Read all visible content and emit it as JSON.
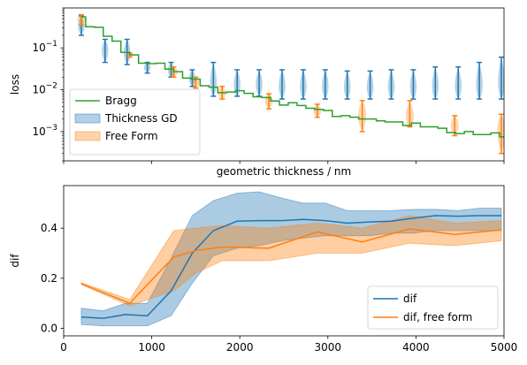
{
  "colors": {
    "blue": "#1f77b4",
    "orange": "#ff7f0e",
    "green": "#2ca02c"
  },
  "chart_data": [
    {
      "type": "line",
      "scale_y": "log",
      "xlim": [
        0,
        5000
      ],
      "ylim": [
        0.0002,
        0.9
      ],
      "ylabel": "loss",
      "xlabel": "geometric thickness / nm",
      "show_x_ticklabels": false,
      "yticks": [
        {
          "value": 0.1,
          "label": "10",
          "exp": "−1"
        },
        {
          "value": 0.01,
          "label": "10",
          "exp": "−2"
        },
        {
          "value": 0.001,
          "label": "10",
          "exp": "−3"
        }
      ],
      "legend": {
        "placement": "lower-left",
        "entries": [
          {
            "label": "Bragg",
            "kind": "line",
            "color": "green"
          },
          {
            "label": "Thickness GD",
            "kind": "patch",
            "color": "blue"
          },
          {
            "label": "Free Form",
            "kind": "patch",
            "color": "orange"
          }
        ]
      },
      "bragg": {
        "x": [
          200,
          300,
          400,
          500,
          600,
          700,
          800,
          900,
          1000,
          1100,
          1200,
          1300,
          1400,
          1500,
          1600,
          1700,
          1800,
          1900,
          2000,
          2100,
          2200,
          2300,
          2400,
          2500,
          2600,
          2700,
          2800,
          2900,
          3000,
          3100,
          3200,
          3300,
          3400,
          3500,
          3600,
          3700,
          3800,
          3900,
          4000,
          4100,
          4200,
          4300,
          4400,
          4500,
          4600,
          4700,
          4800,
          4900,
          5000
        ],
        "y": [
          0.55,
          0.32,
          0.31,
          0.19,
          0.145,
          0.078,
          0.068,
          0.043,
          0.042,
          0.043,
          0.031,
          0.027,
          0.019,
          0.018,
          0.0125,
          0.0115,
          0.0085,
          0.0088,
          0.0095,
          0.0082,
          0.0068,
          0.0065,
          0.0054,
          0.0043,
          0.0049,
          0.0042,
          0.0036,
          0.0034,
          0.0032,
          0.0023,
          0.0024,
          0.0022,
          0.002,
          0.002,
          0.0018,
          0.0017,
          0.0017,
          0.0014,
          0.0016,
          0.0013,
          0.0013,
          0.0012,
          0.00095,
          0.0009,
          0.001,
          0.00085,
          0.00085,
          0.00093,
          0.00075
        ]
      },
      "thickness_gd": [
        {
          "x": 200,
          "min": 0.2,
          "max": 0.58,
          "median": 0.33
        },
        {
          "x": 470,
          "min": 0.045,
          "max": 0.16,
          "median": 0.09
        },
        {
          "x": 720,
          "min": 0.04,
          "max": 0.16,
          "median": 0.075
        },
        {
          "x": 950,
          "min": 0.025,
          "max": 0.045,
          "median": 0.035
        },
        {
          "x": 1220,
          "min": 0.02,
          "max": 0.045,
          "median": 0.028
        },
        {
          "x": 1460,
          "min": 0.012,
          "max": 0.03,
          "median": 0.018
        },
        {
          "x": 1700,
          "min": 0.007,
          "max": 0.045,
          "median": 0.012
        },
        {
          "x": 1970,
          "min": 0.007,
          "max": 0.03,
          "median": 0.012
        },
        {
          "x": 2220,
          "min": 0.007,
          "max": 0.03,
          "median": 0.012
        },
        {
          "x": 2480,
          "min": 0.006,
          "max": 0.03,
          "median": 0.011
        },
        {
          "x": 2720,
          "min": 0.006,
          "max": 0.03,
          "median": 0.011
        },
        {
          "x": 2970,
          "min": 0.006,
          "max": 0.03,
          "median": 0.011
        },
        {
          "x": 3220,
          "min": 0.006,
          "max": 0.028,
          "median": 0.01
        },
        {
          "x": 3480,
          "min": 0.006,
          "max": 0.028,
          "median": 0.01
        },
        {
          "x": 3720,
          "min": 0.006,
          "max": 0.03,
          "median": 0.01
        },
        {
          "x": 3970,
          "min": 0.006,
          "max": 0.03,
          "median": 0.01
        },
        {
          "x": 4220,
          "min": 0.006,
          "max": 0.035,
          "median": 0.01
        },
        {
          "x": 4480,
          "min": 0.006,
          "max": 0.035,
          "median": 0.01
        },
        {
          "x": 4720,
          "min": 0.006,
          "max": 0.045,
          "median": 0.01
        },
        {
          "x": 4970,
          "min": 0.006,
          "max": 0.06,
          "median": 0.012
        }
      ],
      "free_form": [
        {
          "x": 200,
          "min": 0.35,
          "max": 0.62,
          "median": 0.5
        },
        {
          "x": 750,
          "min": 0.06,
          "max": 0.075,
          "median": 0.068
        },
        {
          "x": 1250,
          "min": 0.02,
          "max": 0.035,
          "median": 0.027
        },
        {
          "x": 1500,
          "min": 0.011,
          "max": 0.02,
          "median": 0.014
        },
        {
          "x": 1800,
          "min": 0.006,
          "max": 0.012,
          "median": 0.008
        },
        {
          "x": 2330,
          "min": 0.0035,
          "max": 0.008,
          "median": 0.0055
        },
        {
          "x": 2880,
          "min": 0.0022,
          "max": 0.0045,
          "median": 0.003
        },
        {
          "x": 3390,
          "min": 0.001,
          "max": 0.0055,
          "median": 0.0025
        },
        {
          "x": 3930,
          "min": 0.0013,
          "max": 0.0055,
          "median": 0.0018
        },
        {
          "x": 4440,
          "min": 0.0008,
          "max": 0.0024,
          "median": 0.0014
        },
        {
          "x": 4970,
          "min": 0.0003,
          "max": 0.0026,
          "median": 0.0012
        }
      ]
    },
    {
      "type": "line",
      "xlim": [
        0,
        5000
      ],
      "ylim": [
        -0.03,
        0.57
      ],
      "ylabel": "dif",
      "xticks": [
        0,
        1000,
        2000,
        3000,
        4000,
        5000
      ],
      "yticks": [
        0.0,
        0.2,
        0.4
      ],
      "ytick_labels": [
        "0.0",
        "0.2",
        "0.4"
      ],
      "legend": {
        "placement": "lower-right",
        "entries": [
          {
            "label": "dif",
            "color": "blue"
          },
          {
            "label": "dif, free form",
            "color": "orange"
          }
        ]
      },
      "series": [
        {
          "name": "dif",
          "color": "blue",
          "x": [
            200,
            450,
            700,
            950,
            1220,
            1460,
            1700,
            1970,
            2220,
            2480,
            2720,
            2970,
            3220,
            3480,
            3720,
            3970,
            4220,
            4480,
            4720,
            4970
          ],
          "y": [
            0.045,
            0.04,
            0.055,
            0.05,
            0.15,
            0.3,
            0.39,
            0.428,
            0.43,
            0.43,
            0.435,
            0.43,
            0.42,
            0.425,
            0.428,
            0.44,
            0.45,
            0.448,
            0.45,
            0.45
          ],
          "lower": [
            0.015,
            0.01,
            0.01,
            0.01,
            0.05,
            0.18,
            0.29,
            0.32,
            0.33,
            0.35,
            0.36,
            0.37,
            0.37,
            0.37,
            0.38,
            0.38,
            0.39,
            0.39,
            0.39,
            0.39
          ],
          "upper": [
            0.08,
            0.07,
            0.1,
            0.1,
            0.28,
            0.45,
            0.51,
            0.54,
            0.545,
            0.52,
            0.5,
            0.5,
            0.47,
            0.47,
            0.47,
            0.475,
            0.475,
            0.47,
            0.48,
            0.48
          ]
        },
        {
          "name": "dif, free form",
          "color": "orange",
          "x": [
            200,
            750,
            1250,
            1500,
            1800,
            2330,
            2880,
            3390,
            3930,
            4440,
            4970
          ],
          "y": [
            0.178,
            0.1,
            0.285,
            0.31,
            0.325,
            0.32,
            0.385,
            0.345,
            0.397,
            0.375,
            0.393
          ],
          "lower": [
            0.175,
            0.09,
            0.15,
            0.22,
            0.27,
            0.27,
            0.3,
            0.3,
            0.34,
            0.33,
            0.35
          ],
          "upper": [
            0.182,
            0.115,
            0.39,
            0.4,
            0.41,
            0.4,
            0.42,
            0.4,
            0.45,
            0.42,
            0.43
          ]
        }
      ]
    }
  ]
}
